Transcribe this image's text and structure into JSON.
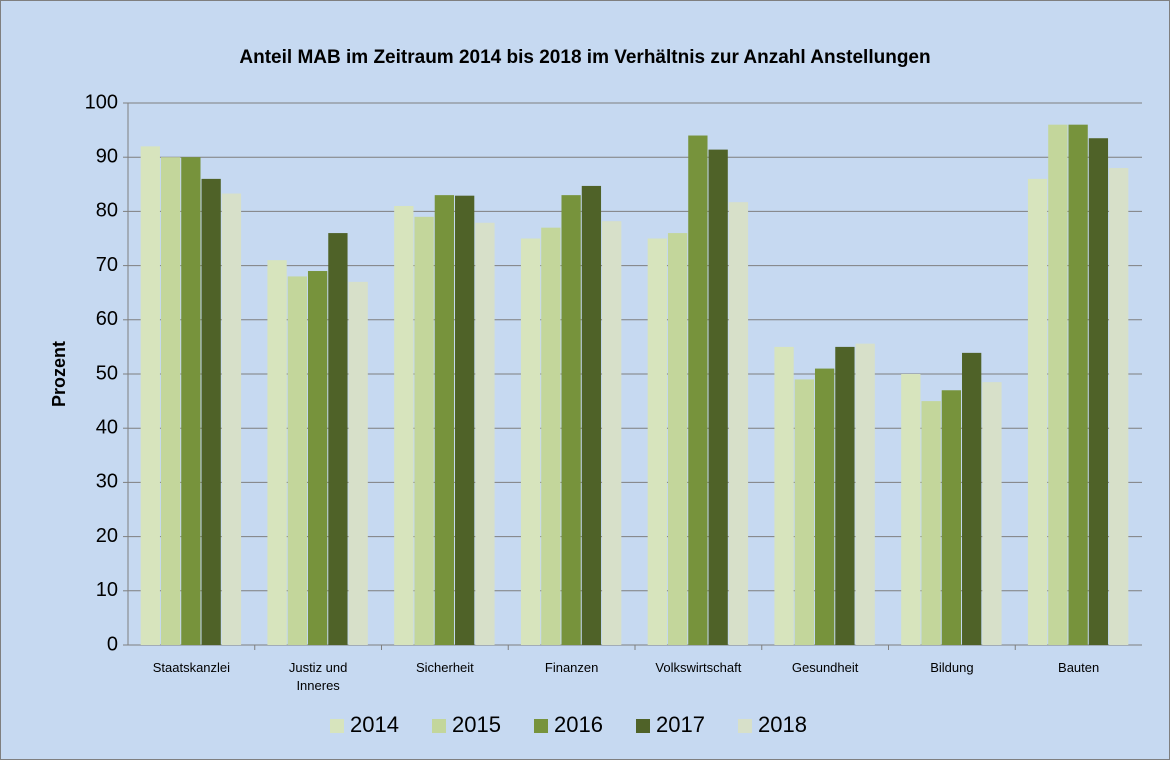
{
  "chart_data": {
    "type": "bar",
    "title": "Anteil MAB im Zeitraum 2014 bis 2018 im Verhältnis zur Anzahl Anstellungen",
    "y_label": "Prozent",
    "categories": [
      "Staatskanzlei",
      "Justiz und Inneres",
      "Sicherheit",
      "Finanzen",
      "Volkswirtschaft",
      "Gesundheit",
      "Bildung",
      "Bauten"
    ],
    "series": [
      {
        "name": "2014",
        "color": "#d7e4bd",
        "values": [
          92,
          71,
          81,
          75,
          75,
          55,
          50,
          86
        ]
      },
      {
        "name": "2015",
        "color": "#c3d69b",
        "values": [
          90,
          68,
          79,
          77,
          76,
          49,
          45,
          96
        ]
      },
      {
        "name": "2016",
        "color": "#77933c",
        "values": [
          90,
          69,
          83,
          83,
          94,
          51,
          47,
          96
        ]
      },
      {
        "name": "2017",
        "color": "#4f6228",
        "values": [
          86,
          76,
          82.9,
          84.7,
          91.4,
          55,
          53.9,
          93.5
        ]
      },
      {
        "name": "2018",
        "color": "#d7e0c9",
        "values": [
          83.3,
          67,
          77.9,
          78.2,
          81.7,
          55.6,
          48.5,
          88
        ]
      }
    ],
    "ylim": [
      0,
      100
    ],
    "yticks": [
      0,
      10,
      20,
      30,
      40,
      50,
      60,
      70,
      80,
      90,
      100
    ],
    "grid": true,
    "legend": "bottom"
  }
}
